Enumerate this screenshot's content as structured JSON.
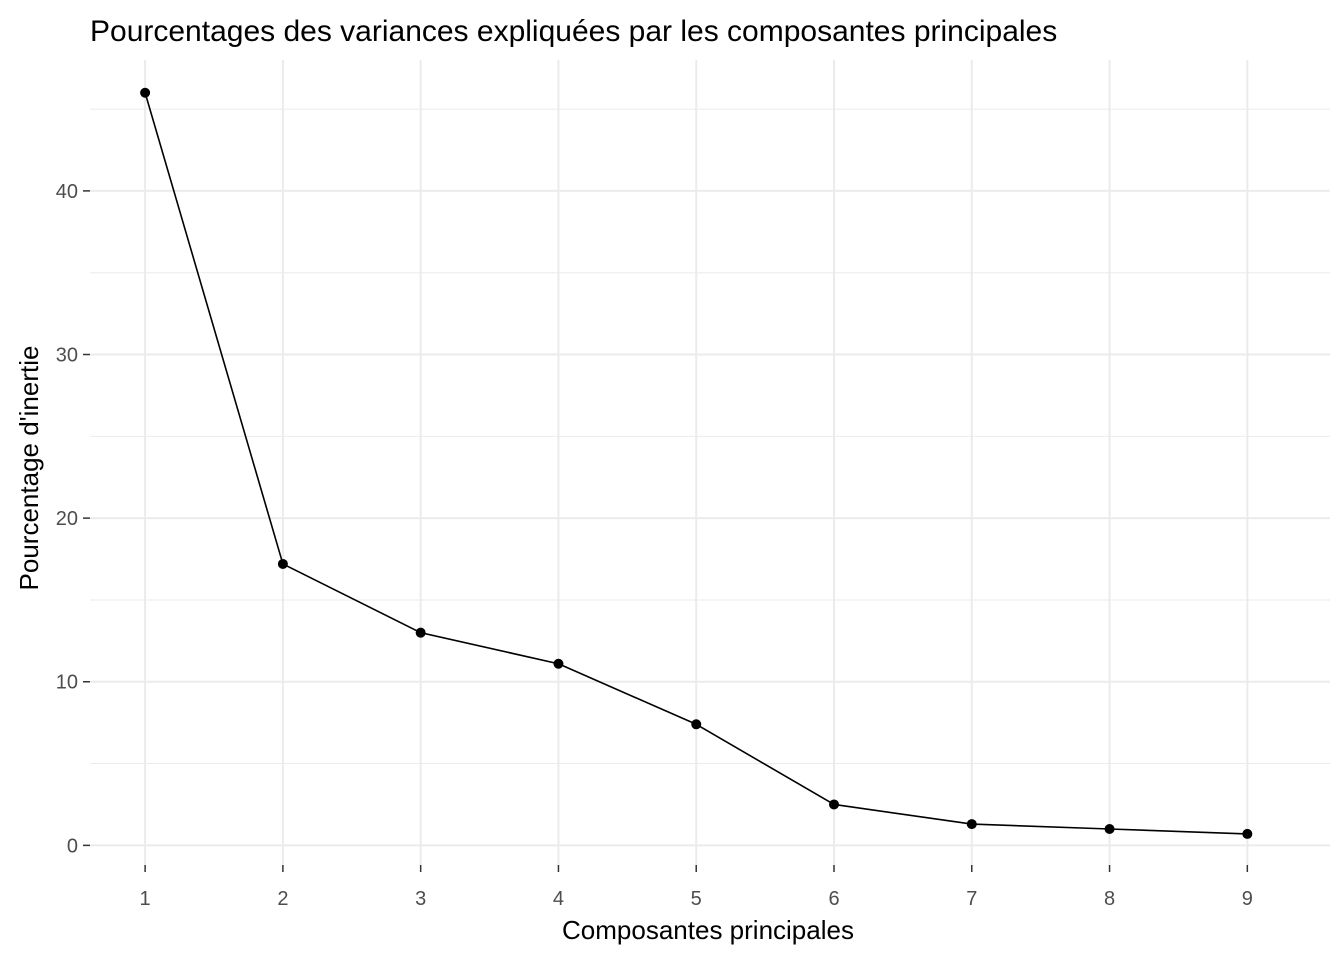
{
  "chart_data": {
    "type": "line",
    "title": "Pourcentages des variances expliquées par les composantes principales",
    "xlabel": "Composantes principales",
    "ylabel": "Pourcentage d'inertie",
    "x": [
      1,
      2,
      3,
      4,
      5,
      6,
      7,
      8,
      9
    ],
    "x_tick_labels": [
      "1",
      "2",
      "3",
      "4",
      "5",
      "6",
      "7",
      "8",
      "9"
    ],
    "y_ticks": [
      0,
      10,
      20,
      30,
      40
    ],
    "y_tick_labels": [
      "0",
      "10",
      "20",
      "30",
      "40"
    ],
    "xlim": [
      0.6,
      9.6
    ],
    "ylim": [
      -1.2,
      48.0
    ],
    "series": [
      {
        "values": [
          46.0,
          17.2,
          13.0,
          11.1,
          7.4,
          2.5,
          1.3,
          1.0,
          0.7
        ],
        "color": "#000000"
      }
    ],
    "grid": true,
    "grid_color": "#ebebeb",
    "legend": "none"
  }
}
